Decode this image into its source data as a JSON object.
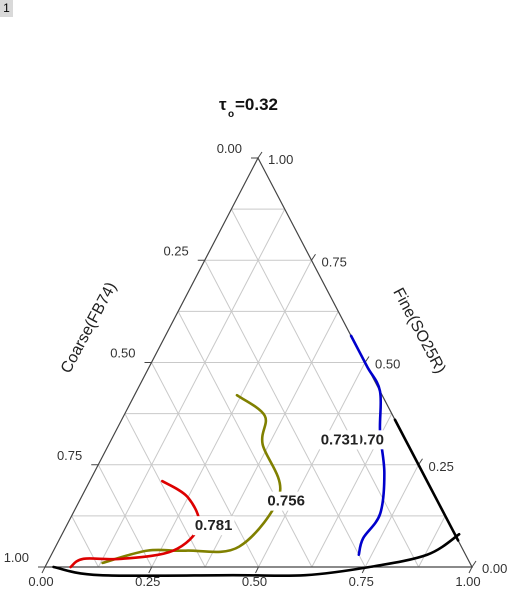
{
  "corner_tag": "1",
  "chart_data": {
    "type": "ternary-contour",
    "title": {
      "symbol": "τ",
      "subscript": "o",
      "suffix": "=0.32"
    },
    "axes": {
      "bottom": {
        "ticks": [
          "0.00",
          "0.25",
          "0.50",
          "0.75",
          "1.00"
        ],
        "range": [
          0,
          1
        ]
      },
      "left": {
        "label": "Coarse(FB74)",
        "ticks": [
          "0.00",
          "0.25",
          "0.50",
          "0.75",
          "1.00"
        ],
        "range": [
          0,
          1
        ]
      },
      "right": {
        "label": "Fine(SO25R)",
        "ticks": [
          "1.00",
          "0.75",
          "0.50",
          "0.25",
          "0.00"
        ],
        "range": [
          0,
          1
        ]
      }
    },
    "grid_step": 0.125,
    "contours": [
      {
        "label": "0.70",
        "color": "#000000",
        "points": [
          [
            0.64,
            0.36
          ],
          [
            0.69,
            0.31
          ],
          [
            0.74,
            0.26
          ],
          [
            0.84,
            0.16
          ],
          [
            0.91,
            0.09
          ],
          [
            0.935,
            0.065
          ]
        ],
        "label_at": [
          0.61,
          0.3
        ]
      },
      {
        "label": "0.731",
        "color": "#0000cc",
        "points": [
          [
            0.435,
            0.565
          ],
          [
            0.51,
            0.49
          ],
          [
            0.57,
            0.43
          ],
          [
            0.62,
            0.33
          ],
          [
            0.68,
            0.23
          ],
          [
            0.72,
            0.13
          ],
          [
            0.71,
            0.07
          ],
          [
            0.72,
            0.03
          ]
        ],
        "label_at": [
          0.54,
          0.3
        ]
      },
      {
        "label": "0.756",
        "color": "#808000",
        "points": [
          [
            0.24,
            0.42
          ],
          [
            0.33,
            0.37
          ],
          [
            0.36,
            0.3
          ],
          [
            0.46,
            0.18
          ],
          [
            0.43,
            0.05
          ],
          [
            0.31,
            0.04
          ],
          [
            0.22,
            0.04
          ],
          [
            0.13,
            0.01
          ]
        ],
        "label_at": [
          0.49,
          0.15
        ]
      },
      {
        "label": "0.781",
        "color": "#dd0000",
        "points": [
          [
            0.17,
            0.21
          ],
          [
            0.25,
            0.17
          ],
          [
            0.31,
            0.1
          ],
          [
            0.28,
            0.04
          ],
          [
            0.17,
            0.02
          ],
          [
            0.08,
            0.02
          ],
          [
            0.06,
            0.0
          ]
        ],
        "label_at": [
          0.35,
          0.09
        ]
      },
      {
        "label": "",
        "color": "#000000",
        "points": [
          [
            0.02,
            0.0
          ],
          [
            0.14,
            -0.02
          ],
          [
            0.45,
            -0.02
          ],
          [
            0.62,
            -0.02
          ],
          [
            0.76,
            0.0
          ],
          [
            0.88,
            0.03
          ],
          [
            0.93,
            0.08
          ]
        ],
        "label_at": null
      }
    ]
  }
}
